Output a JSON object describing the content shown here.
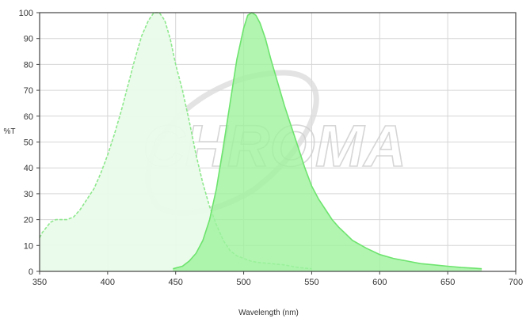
{
  "chart_data": {
    "type": "area",
    "xlabel": "Wavelength (nm)",
    "ylabel": "%T",
    "xlim": [
      350,
      700
    ],
    "ylim": [
      0,
      100
    ],
    "x_ticks": [
      350,
      400,
      450,
      500,
      550,
      600,
      650,
      700
    ],
    "y_ticks": [
      0,
      10,
      20,
      30,
      40,
      50,
      60,
      70,
      80,
      90,
      100
    ],
    "grid": true,
    "legend": "none",
    "watermark": "CHROMA",
    "series": [
      {
        "fill_color": "#eafbea",
        "stroke_color": "#8ee88e",
        "dashed": true,
        "x": [
          350,
          352,
          355,
          358,
          362,
          366,
          370,
          375,
          380,
          385,
          390,
          395,
          400,
          405,
          410,
          415,
          420,
          425,
          430,
          434,
          438,
          442,
          446,
          450,
          455,
          460,
          465,
          470,
          475,
          480,
          485,
          490,
          495,
          500,
          505,
          510,
          520,
          530,
          540,
          550
        ],
        "y": [
          13,
          15,
          17,
          19,
          20,
          20,
          20,
          21,
          24,
          28,
          32,
          38,
          45,
          53,
          62,
          72,
          82,
          91,
          97,
          100,
          100,
          97,
          90,
          80,
          70,
          58,
          45,
          34,
          25,
          18,
          12,
          8,
          6,
          5,
          4,
          3.5,
          3,
          2.5,
          1.5,
          1
        ]
      },
      {
        "fill_color": "#9ef29e",
        "stroke_color": "#6ee46e",
        "dashed": false,
        "x": [
          448,
          455,
          460,
          465,
          470,
          475,
          480,
          485,
          490,
          495,
          500,
          503,
          506,
          509,
          512,
          516,
          520,
          525,
          530,
          535,
          540,
          545,
          550,
          555,
          560,
          565,
          570,
          575,
          580,
          590,
          600,
          610,
          620,
          630,
          640,
          650,
          660,
          670,
          675
        ],
        "y": [
          1,
          2,
          4,
          7,
          12,
          20,
          32,
          48,
          65,
          82,
          94,
          99,
          100,
          99,
          96,
          90,
          82,
          73,
          64,
          56,
          48,
          40,
          33,
          28,
          24,
          20,
          17,
          14.5,
          12,
          9,
          6.5,
          5,
          4,
          3,
          2.5,
          2,
          1.5,
          1.2,
          1
        ]
      }
    ]
  }
}
